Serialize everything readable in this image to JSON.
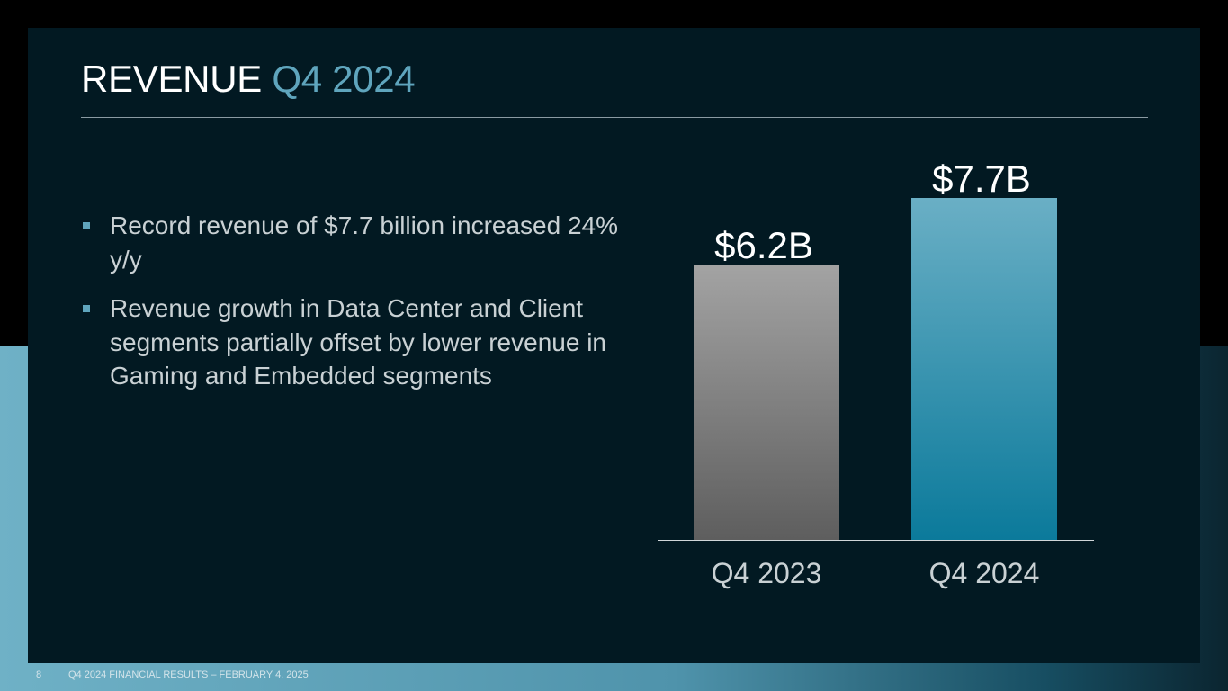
{
  "slide": {
    "title_main": "REVENUE",
    "title_accent": "Q4 2024",
    "bullets": [
      "Record revenue of $7.7 billion increased 24% y/y",
      "Revenue growth in Data Center and Client segments partially offset by lower revenue in Gaming and Embedded segments"
    ]
  },
  "footer": {
    "page_number": "8",
    "text": "Q4 2024 FINANCIAL RESULTS – FEBRUARY 4, 2025"
  },
  "colors": {
    "accent": "#5fa5bd",
    "background": "#021922",
    "bar_prior_top": "#a3a3a3",
    "bar_prior_bottom": "#5e5e5e",
    "bar_current_top": "#6aafc5",
    "bar_current_bottom": "#0b7a9b"
  },
  "chart_data": {
    "type": "bar",
    "categories": [
      "Q4 2023",
      "Q4 2024"
    ],
    "values": [
      6.2,
      7.7
    ],
    "value_labels": [
      "$6.2B",
      "$7.7B"
    ],
    "ylim": [
      0,
      7.7
    ],
    "grid": false,
    "title": "",
    "xlabel": "",
    "ylabel": ""
  }
}
